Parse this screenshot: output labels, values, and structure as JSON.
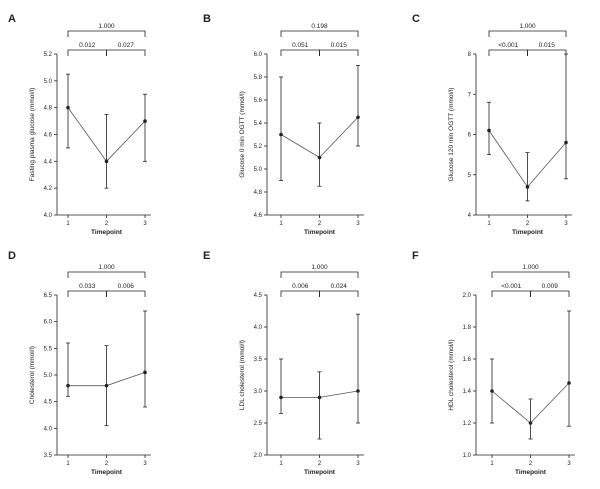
{
  "chart_data": [
    {
      "panel": "A",
      "type": "line",
      "xlabel": "Timepoint",
      "ylabel": "Fasting plasma glucose (mmol/l)",
      "categories": [
        "1",
        "2",
        "3"
      ],
      "values": [
        4.8,
        4.4,
        4.7
      ],
      "error_low": [
        4.5,
        4.2,
        4.4
      ],
      "error_high": [
        5.05,
        4.75,
        4.9
      ],
      "ylim": [
        4.0,
        5.2
      ],
      "yticks": [
        "4.0",
        "4.2",
        "4.4",
        "4.6",
        "4.8",
        "5.0",
        "5.2"
      ],
      "brackets": [
        {
          "from": 1,
          "to": 2,
          "level": 1,
          "label": "0.012"
        },
        {
          "from": 2,
          "to": 3,
          "level": 1,
          "label": "0.027"
        },
        {
          "from": 1,
          "to": 3,
          "level": 2,
          "label": "1.000"
        }
      ]
    },
    {
      "panel": "B",
      "type": "line",
      "xlabel": "Timepoint",
      "ylabel": "Glucose 0 min OGTT (mmol/l)",
      "categories": [
        "1",
        "2",
        "3"
      ],
      "values": [
        5.3,
        5.1,
        5.45
      ],
      "error_low": [
        4.9,
        4.85,
        5.2
      ],
      "error_high": [
        5.8,
        5.4,
        5.9
      ],
      "ylim": [
        4.6,
        6.0
      ],
      "yticks": [
        "4.6",
        "4.8",
        "5.0",
        "5.2",
        "5.4",
        "5.6",
        "5.8",
        "6.0"
      ],
      "brackets": [
        {
          "from": 1,
          "to": 2,
          "level": 1,
          "label": "0.051"
        },
        {
          "from": 2,
          "to": 3,
          "level": 1,
          "label": "0.015"
        },
        {
          "from": 1,
          "to": 3,
          "level": 2,
          "label": "0.198"
        }
      ]
    },
    {
      "panel": "C",
      "type": "line",
      "xlabel": "Timepoint",
      "ylabel": "Glucose 120 min OGTT (mmol/l)",
      "categories": [
        "1",
        "2",
        "3"
      ],
      "values": [
        6.1,
        4.7,
        5.8
      ],
      "error_low": [
        5.5,
        4.35,
        4.9
      ],
      "error_high": [
        6.8,
        5.55,
        8.0
      ],
      "ylim": [
        4,
        8
      ],
      "yticks": [
        "4",
        "5",
        "6",
        "7",
        "8"
      ],
      "brackets": [
        {
          "from": 1,
          "to": 2,
          "level": 1,
          "label": "<0.001"
        },
        {
          "from": 2,
          "to": 3,
          "level": 1,
          "label": "0.015"
        },
        {
          "from": 1,
          "to": 3,
          "level": 2,
          "label": "1.000"
        }
      ]
    },
    {
      "panel": "D",
      "type": "line",
      "xlabel": "Timepoint",
      "ylabel": "Cholesterol (mmol/l)",
      "categories": [
        "1",
        "2",
        "3"
      ],
      "values": [
        4.8,
        4.8,
        5.05
      ],
      "error_low": [
        4.6,
        4.05,
        4.4
      ],
      "error_high": [
        5.6,
        5.55,
        6.2
      ],
      "ylim": [
        3.5,
        6.5
      ],
      "yticks": [
        "3.5",
        "4.0",
        "4.5",
        "5.0",
        "5.5",
        "6.0",
        "6.5"
      ],
      "brackets": [
        {
          "from": 1,
          "to": 2,
          "level": 1,
          "label": "0.033"
        },
        {
          "from": 2,
          "to": 3,
          "level": 1,
          "label": "0.006"
        },
        {
          "from": 1,
          "to": 3,
          "level": 2,
          "label": "1.000"
        }
      ]
    },
    {
      "panel": "E",
      "type": "line",
      "xlabel": "Timepoint",
      "ylabel": "LDL cholesterol (mmol/l)",
      "categories": [
        "1",
        "2",
        "3"
      ],
      "values": [
        2.9,
        2.9,
        3.0
      ],
      "error_low": [
        2.65,
        2.25,
        2.5
      ],
      "error_high": [
        3.5,
        3.3,
        4.2
      ],
      "ylim": [
        2.0,
        4.5
      ],
      "yticks": [
        "2.0",
        "2.5",
        "3.0",
        "3.5",
        "4.0",
        "4.5"
      ],
      "brackets": [
        {
          "from": 1,
          "to": 2,
          "level": 1,
          "label": "0.006"
        },
        {
          "from": 2,
          "to": 3,
          "level": 1,
          "label": "0.024"
        },
        {
          "from": 1,
          "to": 3,
          "level": 2,
          "label": "1.000"
        }
      ]
    },
    {
      "panel": "F",
      "type": "line",
      "xlabel": "Timepoint",
      "ylabel": "HDL cholesterol (mmol/l)",
      "categories": [
        "1",
        "2",
        "3"
      ],
      "values": [
        1.4,
        1.2,
        1.45
      ],
      "error_low": [
        1.2,
        1.1,
        1.18
      ],
      "error_high": [
        1.6,
        1.35,
        1.9
      ],
      "ylim": [
        1.0,
        2.0
      ],
      "yticks": [
        "1.0",
        "1.2",
        "1.4",
        "1.6",
        "1.8",
        "2.0"
      ],
      "brackets": [
        {
          "from": 1,
          "to": 2,
          "level": 1,
          "label": "<0.001"
        },
        {
          "from": 2,
          "to": 3,
          "level": 1,
          "label": "0.009"
        },
        {
          "from": 1,
          "to": 3,
          "level": 2,
          "label": "1.000"
        }
      ]
    }
  ],
  "colors": {
    "line": "#555555",
    "marker": "#222222",
    "axis": "#222222",
    "bracket": "#222222"
  }
}
